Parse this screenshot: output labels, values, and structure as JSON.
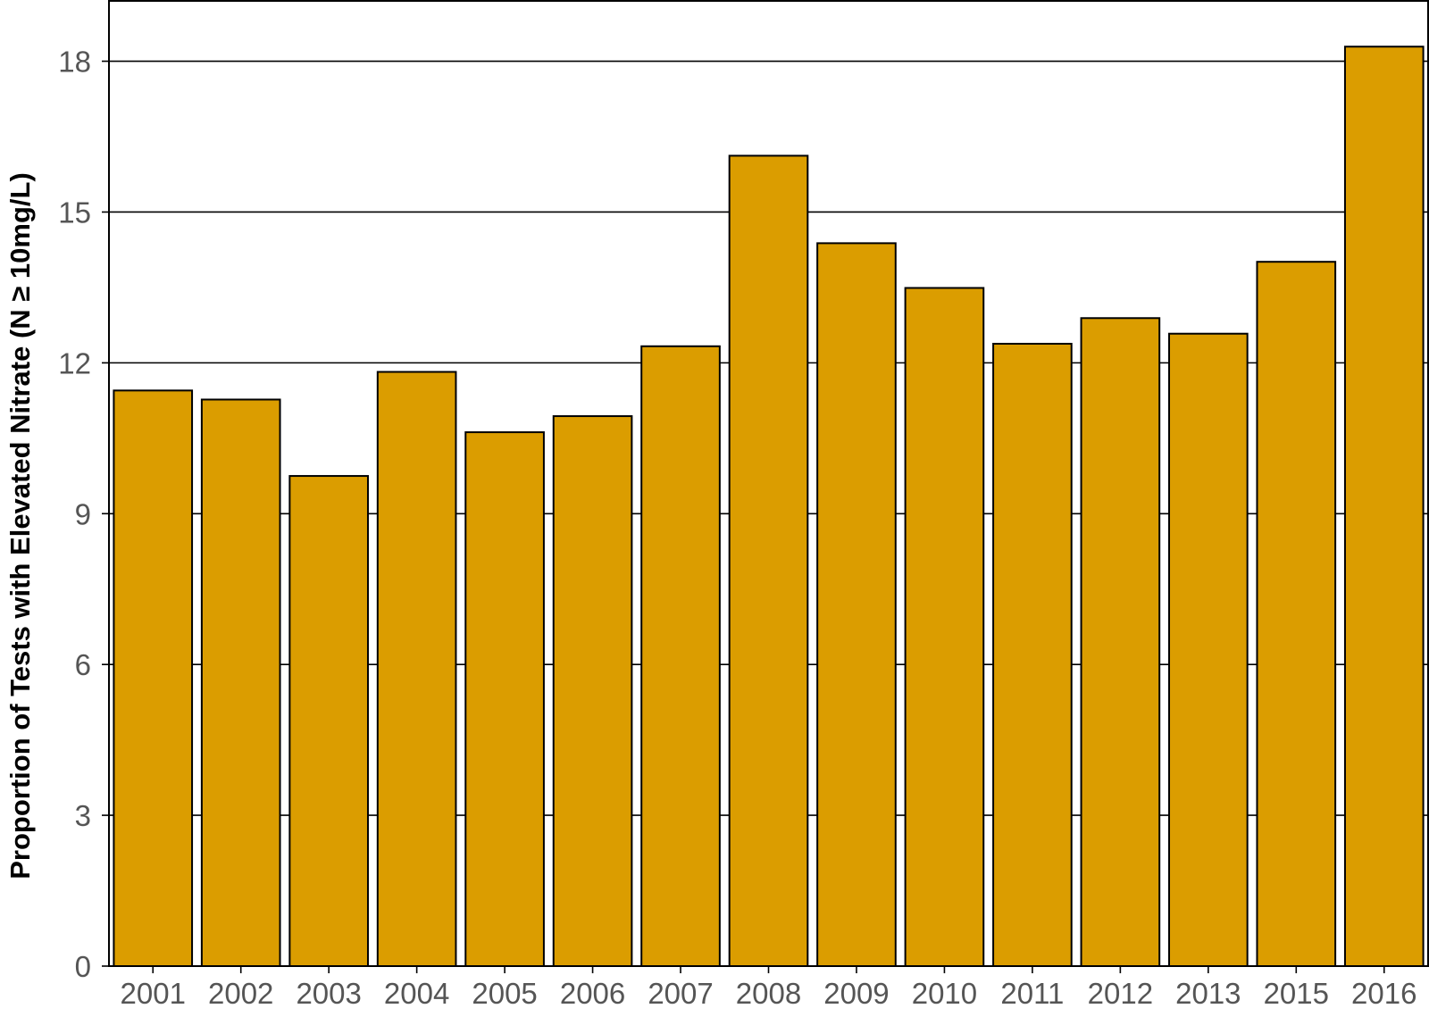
{
  "chart_data": {
    "type": "bar",
    "title": "",
    "xlabel": "",
    "ylabel": "Proportion of Tests with Elevated Nitrate (N ≥ 10mg/L)",
    "categories": [
      "2001",
      "2002",
      "2003",
      "2004",
      "2005",
      "2006",
      "2007",
      "2008",
      "2009",
      "2010",
      "2011",
      "2012",
      "2013",
      "2015",
      "2016"
    ],
    "values": [
      11.45,
      11.27,
      9.75,
      11.82,
      10.62,
      10.94,
      12.33,
      16.12,
      14.38,
      13.49,
      12.38,
      12.89,
      12.58,
      14.01,
      18.29
    ],
    "ylim": [
      0,
      19.2
    ],
    "yticks": [
      0,
      3,
      6,
      9,
      12,
      15,
      18
    ],
    "grid": true,
    "legend": "none",
    "bar_color": "#DB9D00"
  }
}
